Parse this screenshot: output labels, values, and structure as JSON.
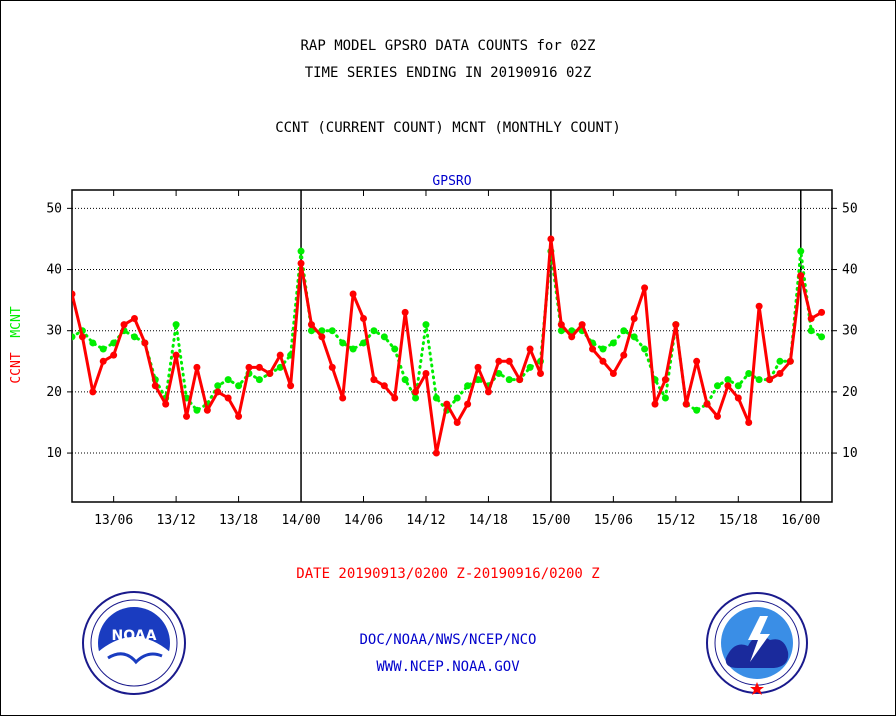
{
  "header": {
    "line1": "RAP MODEL GPSRO DATA COUNTS for 02Z",
    "line2": "TIME SERIES ENDING IN 20190916 02Z",
    "line3": "CCNT (CURRENT COUNT) MCNT (MONTHLY COUNT)"
  },
  "footer": {
    "date_range": "DATE 20190913/0200 Z-20190916/0200 Z",
    "org": "DOC/NOAA/NWS/NCEP/NCO",
    "url": "WWW.NCEP.NOAA.GOV"
  },
  "colors": {
    "ccnt": "#ff0000",
    "mcnt": "#00ee00",
    "axis": "#000000",
    "label_blue": "#0000cc"
  },
  "logos": {
    "left": "noaa-logo",
    "right": "national-weather-service-logo"
  },
  "chart_data": {
    "type": "line",
    "title": "GPSRO",
    "ylabel_ccnt": "CCNT",
    "ylabel_mcnt": "MCNT",
    "ylim": [
      2,
      53
    ],
    "yticks": [
      10,
      20,
      30,
      40,
      50
    ],
    "xlim": [
      2,
      75
    ],
    "xticks": [
      {
        "x": 6,
        "label": "13/06"
      },
      {
        "x": 12,
        "label": "13/12"
      },
      {
        "x": 18,
        "label": "13/18"
      },
      {
        "x": 24,
        "label": "14/00"
      },
      {
        "x": 30,
        "label": "14/06"
      },
      {
        "x": 36,
        "label": "14/12"
      },
      {
        "x": 42,
        "label": "14/18"
      },
      {
        "x": 48,
        "label": "15/00"
      },
      {
        "x": 54,
        "label": "15/06"
      },
      {
        "x": 60,
        "label": "15/12"
      },
      {
        "x": 66,
        "label": "15/18"
      },
      {
        "x": 72,
        "label": "16/00"
      }
    ],
    "day_boundaries": [
      24,
      48,
      72
    ],
    "grid": true,
    "series": [
      {
        "name": "CCNT",
        "color": "#ff0000",
        "x": [
          2,
          3,
          4,
          5,
          6,
          7,
          8,
          9,
          10,
          11,
          12,
          13,
          14,
          15,
          16,
          17,
          18,
          19,
          20,
          21,
          22,
          23,
          24,
          25,
          26,
          27,
          28,
          29,
          30,
          31,
          32,
          33,
          34,
          35,
          36,
          37,
          38,
          39,
          40,
          41,
          42,
          43,
          44,
          45,
          46,
          47,
          48,
          49,
          50,
          51,
          52,
          53,
          54,
          55,
          56,
          57,
          58,
          59,
          60,
          61,
          62,
          63,
          64,
          65,
          66,
          67,
          68,
          69,
          70,
          71,
          72,
          73,
          74
        ],
        "values": [
          36,
          29,
          20,
          25,
          26,
          31,
          32,
          28,
          21,
          18,
          26,
          16,
          24,
          17,
          20,
          19,
          16,
          24,
          24,
          23,
          26,
          21,
          41,
          31,
          29,
          24,
          19,
          36,
          32,
          22,
          21,
          19,
          33,
          20,
          23,
          10,
          18,
          15,
          18,
          24,
          20,
          25,
          25,
          22,
          27,
          23,
          45,
          31,
          29,
          31,
          27,
          25,
          23,
          26,
          32,
          37,
          18,
          22,
          31,
          18,
          25,
          18,
          16,
          21,
          19,
          15,
          34,
          22,
          23,
          25,
          39,
          32,
          33
        ]
      },
      {
        "name": "MCNT",
        "color": "#00ee00",
        "x": [
          2,
          3,
          4,
          5,
          6,
          7,
          8,
          9,
          10,
          11,
          12,
          13,
          14,
          15,
          16,
          17,
          18,
          19,
          20,
          21,
          22,
          23,
          24,
          25,
          26,
          27,
          28,
          29,
          30,
          31,
          32,
          33,
          34,
          35,
          36,
          37,
          38,
          39,
          40,
          41,
          42,
          43,
          44,
          45,
          46,
          47,
          48,
          49,
          50,
          51,
          52,
          53,
          54,
          55,
          56,
          57,
          58,
          59,
          60,
          61,
          62,
          63,
          64,
          65,
          66,
          67,
          68,
          69,
          70,
          71,
          72,
          73,
          74
        ],
        "values": [
          29,
          30,
          28,
          27,
          28,
          30,
          29,
          28,
          22,
          19,
          31,
          19,
          17,
          18,
          21,
          22,
          21,
          23,
          22,
          23,
          24,
          26,
          43,
          30,
          30,
          30,
          28,
          27,
          28,
          30,
          29,
          27,
          22,
          19,
          31,
          19,
          17,
          19,
          21,
          22,
          21,
          23,
          22,
          22,
          24,
          25,
          43,
          30,
          30,
          30,
          28,
          27,
          28,
          30,
          29,
          27,
          22,
          19,
          31,
          18,
          17,
          18,
          21,
          22,
          21,
          23,
          22,
          22,
          25,
          25,
          43,
          30,
          29
        ]
      }
    ]
  }
}
